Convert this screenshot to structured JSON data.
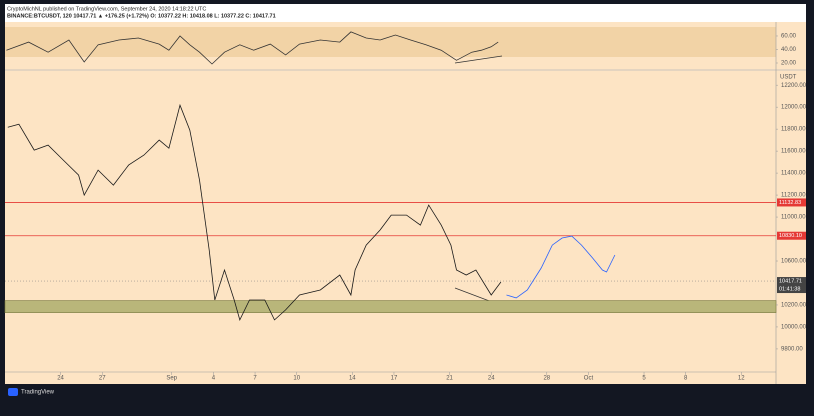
{
  "chart_data": [
    {
      "type": "line",
      "title": "CryptoMichNL published on TradingView.com, September 24, 2020 14:18:22 UTC",
      "subtitle": "BINANCE:BTCUSDT, 120  10417.71 ▲ +176.25 (+1.72%) O: 10377.22 H: 10418.08 L: 10377.22 C: 10417.71",
      "source": "TradingView",
      "price_unit": "USDT",
      "xlim": [
        -4,
        51.5
      ],
      "ylim": [
        9590,
        12320
      ],
      "xticks": [
        {
          "value": 0,
          "label": "24"
        },
        {
          "value": 3,
          "label": "27"
        },
        {
          "value": 8,
          "label": "Sep"
        },
        {
          "value": 11,
          "label": "4"
        },
        {
          "value": 14,
          "label": "7"
        },
        {
          "value": 17,
          "label": "10"
        },
        {
          "value": 21,
          "label": "14"
        },
        {
          "value": 24,
          "label": "17"
        },
        {
          "value": 28,
          "label": "21"
        },
        {
          "value": 31,
          "label": "24"
        },
        {
          "value": 35,
          "label": "28"
        },
        {
          "value": 38,
          "label": "Oct"
        },
        {
          "value": 42,
          "label": "5"
        },
        {
          "value": 45,
          "label": "8"
        },
        {
          "value": 49,
          "label": "12"
        }
      ],
      "yticks": [
        {
          "value": 12200,
          "label": "12200.00"
        },
        {
          "value": 12000,
          "label": "12000.00"
        },
        {
          "value": 11800,
          "label": "11800.00"
        },
        {
          "value": 11600,
          "label": "11600.00"
        },
        {
          "value": 11400,
          "label": "11400.00"
        },
        {
          "value": 11200,
          "label": "11200.00"
        },
        {
          "value": 11000,
          "label": "11000.00"
        },
        {
          "value": 10600,
          "label": "10600.00"
        },
        {
          "value": 10200,
          "label": "10200.00"
        },
        {
          "value": 10000,
          "label": "10000.00"
        },
        {
          "value": 9800,
          "label": "9800.00"
        }
      ],
      "series": [
        {
          "color": "#1a1a1a",
          "x": [
            -3.8,
            -3.0,
            -1.9,
            -0.9,
            0.2,
            1.3,
            1.7,
            2.7,
            3.8,
            4.9,
            6.0,
            7.1,
            7.8,
            8.6,
            9.3,
            10.0,
            10.7,
            11.1,
            11.8,
            12.5,
            12.9,
            13.6,
            14.7,
            15.4,
            16.2,
            17.2,
            18.7,
            20.1,
            20.9,
            21.2,
            22.0,
            23.0,
            23.8,
            24.9,
            25.9,
            26.5,
            27.4,
            28.1,
            28.5,
            29.2,
            29.9,
            31.0,
            31.7
          ],
          "values": [
            11818,
            11845,
            11609,
            11655,
            11518,
            11382,
            11200,
            11427,
            11291,
            11473,
            11564,
            11700,
            11627,
            12018,
            11791,
            11336,
            10700,
            10245,
            10518,
            10245,
            10064,
            10245,
            10245,
            10064,
            10155,
            10291,
            10336,
            10473,
            10291,
            10518,
            10745,
            10882,
            11018,
            11018,
            10927,
            11109,
            10927,
            10745,
            10518,
            10473,
            10518,
            10291,
            10409
          ]
        },
        {
          "color": "#2962ff",
          "x": [
            32.1,
            32.8,
            33.6,
            34.6,
            35.4,
            36.1,
            36.8,
            37.5,
            38.3,
            39.0,
            39.3,
            39.9
          ],
          "values": [
            10291,
            10264,
            10336,
            10536,
            10745,
            10809,
            10827,
            10745,
            10627,
            10518,
            10500,
            10655
          ]
        }
      ],
      "levels": [
        {
          "value": 11132.83,
          "color": "#e53935"
        },
        {
          "value": {
            "value": 10830.1,
            "label": "10830.10"
          },
          "color": "#e53935"
        }
      ],
      "zone": [
        10130,
        10240
      ],
      "zone_color": "#b9b67a",
      "last_price": 10417.71,
      "countdown": "01:41:38"
    },
    {
      "type": "line",
      "ylim": [
        12.6,
        73.3
      ],
      "yticks": [
        {
          "value": 60,
          "label": "60.00"
        },
        {
          "value": 40,
          "label": "40.00"
        },
        {
          "value": 20,
          "label": "20.00"
        }
      ],
      "series": [
        {
          "color": "#333333",
          "x": [
            -3.9,
            -2.3,
            -0.9,
            0.6,
            1.7,
            2.7,
            4.2,
            5.6,
            7.1,
            7.8,
            8.6,
            9.3,
            10.0,
            10.9,
            11.8,
            12.9,
            13.9,
            15.1,
            16.2,
            17.2,
            18.7,
            20.1,
            20.9,
            22.0,
            23.0,
            24.1,
            25.2,
            26.3,
            27.4,
            28.5,
            29.6,
            30.3,
            31.0,
            31.5
          ],
          "values": [
            39,
            51,
            36,
            54,
            21.5,
            47,
            54,
            57,
            48,
            39,
            60,
            47,
            36,
            18.5,
            36,
            47,
            39,
            48,
            32,
            48,
            54,
            51,
            66,
            57,
            54,
            61.5,
            54,
            47,
            39,
            24,
            36,
            39,
            44,
            51
          ]
        }
      ]
    }
  ]
}
